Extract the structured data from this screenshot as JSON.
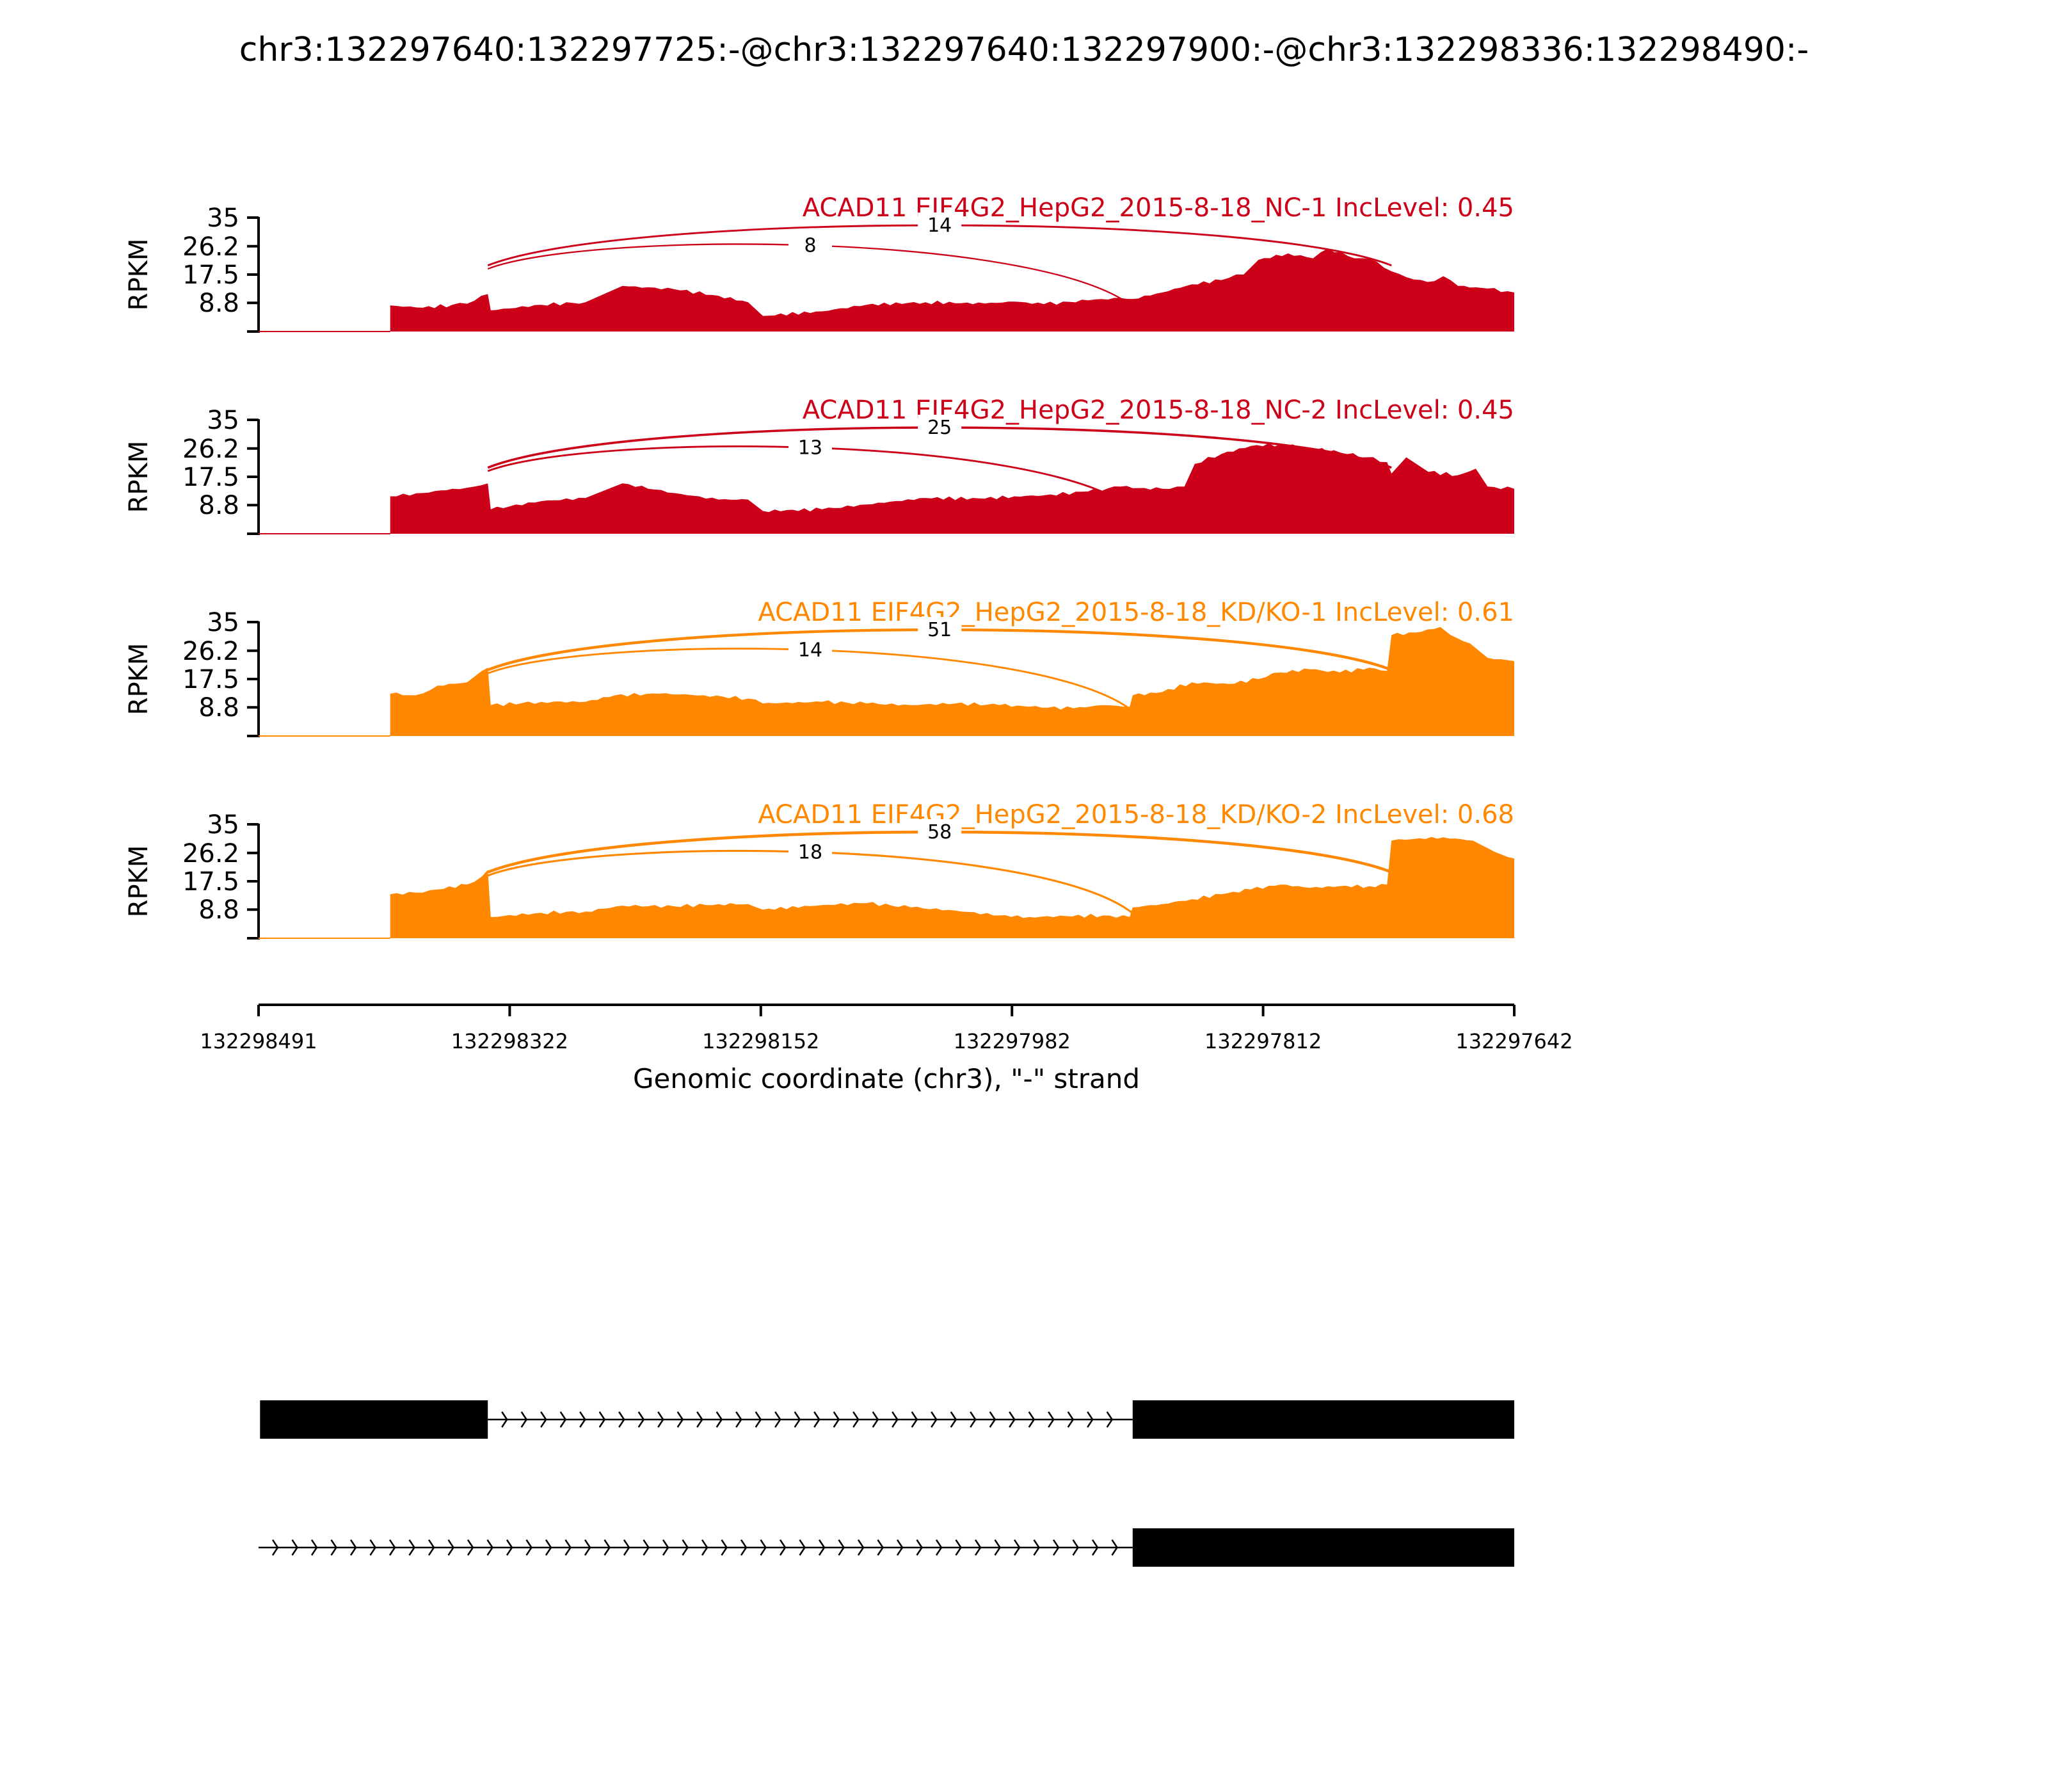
{
  "chart_data": {
    "type": "area",
    "title": "chr3:132297640:132297725:-@chr3:132297640:132297900:-@chr3:132298336:132298490:-",
    "ylabel": "RPKM",
    "xlabel": "Genomic coordinate (chr3), \"-\" strand",
    "x_range": [
      132298491,
      132297642
    ],
    "x_ticks": [
      "132298491",
      "132298322",
      "132298152",
      "132297982",
      "132297812",
      "132297642"
    ],
    "y_range": [
      0,
      35
    ],
    "y_ticks": [
      "35",
      "26.2",
      "17.5",
      "8.8"
    ],
    "colors": {
      "NC": "#cc0018",
      "KD": "#ff8800",
      "structure": "#000000"
    },
    "samples": [
      {
        "label": "ACAD11 EIF4G2_HepG2_2015-8-18_NC-1 IncLevel: 0.45",
        "group": "NC",
        "profile": [
          [
            132298402,
            8.0
          ],
          [
            132298380,
            7.3
          ],
          [
            132298360,
            8.2
          ],
          [
            132298345,
            9.5
          ],
          [
            132298336,
            11.5
          ],
          [
            132298334,
            6.5
          ],
          [
            132298300,
            8.2
          ],
          [
            132298270,
            9.0
          ],
          [
            132298245,
            14.0
          ],
          [
            132298210,
            13.0
          ],
          [
            132298180,
            11.0
          ],
          [
            132298160,
            9.0
          ],
          [
            132298150,
            4.8
          ],
          [
            132298110,
            6.2
          ],
          [
            132298080,
            8.2
          ],
          [
            132298040,
            9.0
          ],
          [
            132298000,
            8.6
          ],
          [
            132297980,
            9.2
          ],
          [
            132297960,
            8.4
          ],
          [
            132297930,
            9.6
          ],
          [
            132297908,
            10.3
          ],
          [
            132297900,
            10.0
          ],
          [
            132297880,
            12.0
          ],
          [
            132297860,
            14.5
          ],
          [
            132297840,
            15.8
          ],
          [
            132297825,
            17.5
          ],
          [
            132297815,
            22.0
          ],
          [
            132297795,
            24.0
          ],
          [
            132297778,
            22.5
          ],
          [
            132297768,
            25.5
          ],
          [
            132297750,
            22.5
          ],
          [
            132297735,
            21.5
          ],
          [
            132297725,
            18.5
          ],
          [
            132297710,
            16.0
          ],
          [
            132297696,
            15.5
          ],
          [
            132297690,
            17.0
          ],
          [
            132297680,
            14.0
          ],
          [
            132297660,
            13.2
          ],
          [
            132297642,
            12.0
          ]
        ],
        "junctions": [
          {
            "donor": 132298336,
            "acceptor": 132297725,
            "count": "14"
          },
          {
            "donor": 132298336,
            "acceptor": 132297900,
            "count": "8"
          }
        ]
      },
      {
        "label": "ACAD11 EIF4G2_HepG2_2015-8-18_NC-2 IncLevel: 0.45",
        "group": "NC",
        "profile": [
          [
            132298402,
            11.5
          ],
          [
            132298380,
            12.5
          ],
          [
            132298360,
            13.8
          ],
          [
            132298345,
            14.5
          ],
          [
            132298336,
            15.5
          ],
          [
            132298334,
            7.5
          ],
          [
            132298300,
            10.0
          ],
          [
            132298270,
            11.0
          ],
          [
            132298245,
            15.5
          ],
          [
            132298210,
            12.5
          ],
          [
            132298180,
            10.5
          ],
          [
            132298160,
            10.5
          ],
          [
            132298150,
            7.0
          ],
          [
            132298110,
            7.5
          ],
          [
            132298080,
            9.0
          ],
          [
            132298040,
            11.0
          ],
          [
            132298000,
            10.8
          ],
          [
            132297980,
            11.5
          ],
          [
            132297960,
            11.8
          ],
          [
            132297930,
            13.0
          ],
          [
            132297908,
            14.5
          ],
          [
            132297900,
            14.0
          ],
          [
            132297880,
            13.8
          ],
          [
            132297865,
            14.5
          ],
          [
            132297858,
            21.5
          ],
          [
            132297840,
            24.5
          ],
          [
            132297820,
            27.0
          ],
          [
            132297800,
            27.5
          ],
          [
            132297780,
            26.5
          ],
          [
            132297760,
            25.0
          ],
          [
            132297742,
            23.5
          ],
          [
            132297728,
            22.0
          ],
          [
            132297725,
            18.5
          ],
          [
            132297715,
            23.5
          ],
          [
            132297700,
            19.0
          ],
          [
            132297680,
            18.0
          ],
          [
            132297668,
            20.0
          ],
          [
            132297660,
            14.5
          ],
          [
            132297642,
            13.8
          ]
        ],
        "junctions": [
          {
            "donor": 132298336,
            "acceptor": 132297725,
            "count": "25"
          },
          {
            "donor": 132298336,
            "acceptor": 132297900,
            "count": "13"
          }
        ]
      },
      {
        "label": "ACAD11 EIF4G2_HepG2_2015-8-18_KD/KO-1 IncLevel: 0.61",
        "group": "KD",
        "profile": [
          [
            132298402,
            13.0
          ],
          [
            132298385,
            12.5
          ],
          [
            132298370,
            15.5
          ],
          [
            132298350,
            16.5
          ],
          [
            132298340,
            20.0
          ],
          [
            132298336,
            21.0
          ],
          [
            132298334,
            9.5
          ],
          [
            132298300,
            10.5
          ],
          [
            132298270,
            10.5
          ],
          [
            132298250,
            12.5
          ],
          [
            132298220,
            13.0
          ],
          [
            132298190,
            12.5
          ],
          [
            132298160,
            11.5
          ],
          [
            132298150,
            10.0
          ],
          [
            132298110,
            10.5
          ],
          [
            132298080,
            10.0
          ],
          [
            132298050,
            9.5
          ],
          [
            132298020,
            10.0
          ],
          [
            132297990,
            9.5
          ],
          [
            132297970,
            9.0
          ],
          [
            132297940,
            8.5
          ],
          [
            132297920,
            9.5
          ],
          [
            132297902,
            9.0
          ],
          [
            132297900,
            12.5
          ],
          [
            132297880,
            13.5
          ],
          [
            132297860,
            16.5
          ],
          [
            132297835,
            16.0
          ],
          [
            132297815,
            17.5
          ],
          [
            132297800,
            19.5
          ],
          [
            132297780,
            20.5
          ],
          [
            132297760,
            19.5
          ],
          [
            132297740,
            21.0
          ],
          [
            132297728,
            20.0
          ],
          [
            132297725,
            31.0
          ],
          [
            132297705,
            32.0
          ],
          [
            132297692,
            33.5
          ],
          [
            132297685,
            31.0
          ],
          [
            132297672,
            28.5
          ],
          [
            132297660,
            24.0
          ],
          [
            132297642,
            23.0
          ]
        ],
        "junctions": [
          {
            "donor": 132298336,
            "acceptor": 132297725,
            "count": "51"
          },
          {
            "donor": 132298336,
            "acceptor": 132297900,
            "count": "14"
          }
        ]
      },
      {
        "label": "ACAD11 EIF4G2_HepG2_2015-8-18_KD/KO-2 IncLevel: 0.68",
        "group": "KD",
        "profile": [
          [
            132298402,
            13.5
          ],
          [
            132298385,
            14.0
          ],
          [
            132298370,
            15.0
          ],
          [
            132298350,
            16.5
          ],
          [
            132298340,
            19.0
          ],
          [
            132298336,
            21.0
          ],
          [
            132298334,
            6.5
          ],
          [
            132298300,
            7.8
          ],
          [
            132298270,
            8.2
          ],
          [
            132298245,
            10.0
          ],
          [
            132298210,
            9.8
          ],
          [
            132298180,
            10.5
          ],
          [
            132298160,
            10.5
          ],
          [
            132298150,
            8.8
          ],
          [
            132298110,
            10.2
          ],
          [
            132298080,
            10.8
          ],
          [
            132298050,
            9.5
          ],
          [
            132298020,
            8.5
          ],
          [
            132297990,
            7.0
          ],
          [
            132297970,
            6.5
          ],
          [
            132297945,
            6.8
          ],
          [
            132297920,
            7.0
          ],
          [
            132297902,
            6.5
          ],
          [
            132297900,
            9.5
          ],
          [
            132297880,
            10.5
          ],
          [
            132297860,
            12.0
          ],
          [
            132297840,
            13.5
          ],
          [
            132297820,
            15.0
          ],
          [
            132297800,
            16.5
          ],
          [
            132297780,
            15.5
          ],
          [
            132297760,
            16.0
          ],
          [
            132297740,
            16.0
          ],
          [
            132297728,
            16.5
          ],
          [
            132297725,
            30.0
          ],
          [
            132297710,
            30.5
          ],
          [
            132297690,
            31.0
          ],
          [
            132297670,
            30.0
          ],
          [
            132297655,
            26.5
          ],
          [
            132297642,
            24.5
          ]
        ],
        "junctions": [
          {
            "donor": 132298336,
            "acceptor": 132297725,
            "count": "58"
          },
          {
            "donor": 132298336,
            "acceptor": 132297900,
            "count": "18"
          }
        ]
      }
    ],
    "isoforms": [
      {
        "exons": [
          [
            132298490,
            132298336
          ],
          [
            132297900,
            132297640
          ]
        ]
      },
      {
        "exons": [
          [
            132297900,
            132297640
          ]
        ],
        "intron_from": 132298491
      }
    ]
  }
}
